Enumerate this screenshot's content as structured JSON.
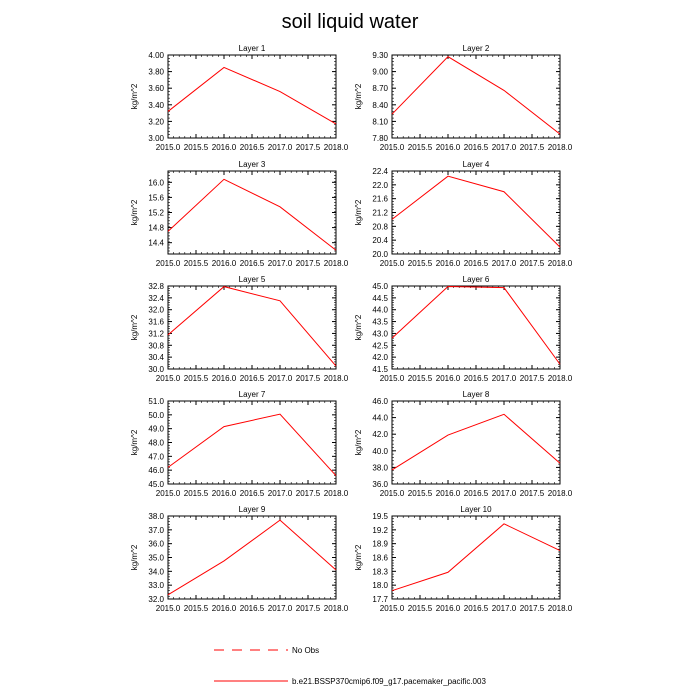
{
  "title": "soil liquid water",
  "colors": {
    "model": "#ff0000",
    "axis": "#000000"
  },
  "legend": {
    "obs_label": "No Obs",
    "model_label": "b.e21.BSSP370cmip6.f09_g17.pacemaker_pacific.003"
  },
  "chart_data": [
    {
      "type": "line",
      "title": "Layer 1",
      "ylabel": "kg/m^2",
      "x": [
        2015.0,
        2016.0,
        2017.0,
        2018.0
      ],
      "xticks": [
        "2015.0",
        "2015.5",
        "2016.0",
        "2016.5",
        "2017.0",
        "2017.5",
        "2018.0"
      ],
      "xlim": [
        2015.0,
        2018.0
      ],
      "ylim": [
        3.0,
        4.0
      ],
      "yticks": [
        "3.00",
        "3.20",
        "3.40",
        "3.60",
        "3.80",
        "4.00"
      ],
      "series": [
        {
          "values": [
            3.32,
            3.85,
            3.56,
            3.17
          ]
        }
      ]
    },
    {
      "type": "line",
      "title": "Layer 2",
      "ylabel": "kg/m^2",
      "x": [
        2015.0,
        2016.0,
        2017.0,
        2018.0
      ],
      "xticks": [
        "2015.0",
        "2015.5",
        "2016.0",
        "2016.5",
        "2017.0",
        "2017.5",
        "2018.0"
      ],
      "xlim": [
        2015.0,
        2018.0
      ],
      "ylim": [
        7.8,
        9.3
      ],
      "yticks": [
        "7.80",
        "8.10",
        "8.40",
        "8.70",
        "9.00",
        "9.30"
      ],
      "series": [
        {
          "values": [
            8.23,
            9.27,
            8.66,
            7.87
          ]
        }
      ]
    },
    {
      "type": "line",
      "title": "Layer 3",
      "ylabel": "kg/m^2",
      "x": [
        2015.0,
        2016.0,
        2017.0,
        2018.0
      ],
      "xticks": [
        "2015.0",
        "2015.5",
        "2016.0",
        "2016.5",
        "2017.0",
        "2017.5",
        "2018.0"
      ],
      "xlim": [
        2015.0,
        2018.0
      ],
      "ylim": [
        14.1,
        16.3
      ],
      "yticks": [
        "14.4",
        "14.8",
        "15.2",
        "15.6",
        "16.0"
      ],
      "series": [
        {
          "values": [
            14.7,
            16.08,
            15.35,
            14.2
          ]
        }
      ]
    },
    {
      "type": "line",
      "title": "Layer 4",
      "ylabel": "kg/m^2",
      "x": [
        2015.0,
        2016.0,
        2017.0,
        2018.0
      ],
      "xticks": [
        "2015.0",
        "2015.5",
        "2016.0",
        "2016.5",
        "2017.0",
        "2017.5",
        "2018.0"
      ],
      "xlim": [
        2015.0,
        2018.0
      ],
      "ylim": [
        20.0,
        22.4
      ],
      "yticks": [
        "20.0",
        "20.4",
        "20.8",
        "21.2",
        "21.6",
        "22.0",
        "22.4"
      ],
      "series": [
        {
          "values": [
            21.0,
            22.25,
            21.8,
            20.2
          ]
        }
      ]
    },
    {
      "type": "line",
      "title": "Layer 5",
      "ylabel": "kg/m^2",
      "x": [
        2015.0,
        2016.0,
        2017.0,
        2018.0
      ],
      "xticks": [
        "2015.0",
        "2015.5",
        "2016.0",
        "2016.5",
        "2017.0",
        "2017.5",
        "2018.0"
      ],
      "xlim": [
        2015.0,
        2018.0
      ],
      "ylim": [
        30.0,
        32.8
      ],
      "yticks": [
        "30.0",
        "30.4",
        "30.8",
        "31.2",
        "31.6",
        "32.0",
        "32.4",
        "32.8"
      ],
      "series": [
        {
          "values": [
            31.15,
            32.78,
            32.3,
            30.1
          ]
        }
      ]
    },
    {
      "type": "line",
      "title": "Layer 6",
      "ylabel": "kg/m^2",
      "x": [
        2015.0,
        2016.0,
        2017.0,
        2018.0
      ],
      "xticks": [
        "2015.0",
        "2015.5",
        "2016.0",
        "2016.5",
        "2017.0",
        "2017.5",
        "2018.0"
      ],
      "xlim": [
        2015.0,
        2018.0
      ],
      "ylim": [
        41.5,
        45.0
      ],
      "yticks": [
        "41.5",
        "42.0",
        "42.5",
        "43.0",
        "43.5",
        "44.0",
        "44.5",
        "45.0"
      ],
      "series": [
        {
          "values": [
            42.8,
            44.98,
            44.93,
            41.7
          ]
        }
      ]
    },
    {
      "type": "line",
      "title": "Layer 7",
      "ylabel": "kg/m^2",
      "x": [
        2015.0,
        2016.0,
        2017.0,
        2018.0
      ],
      "xticks": [
        "2015.0",
        "2015.5",
        "2016.0",
        "2016.5",
        "2017.0",
        "2017.5",
        "2018.0"
      ],
      "xlim": [
        2015.0,
        2018.0
      ],
      "ylim": [
        45.0,
        51.0
      ],
      "yticks": [
        "45.0",
        "46.0",
        "47.0",
        "48.0",
        "49.0",
        "50.0",
        "51.0"
      ],
      "series": [
        {
          "values": [
            46.2,
            49.15,
            50.05,
            45.6
          ]
        }
      ]
    },
    {
      "type": "line",
      "title": "Layer 8",
      "ylabel": "kg/m^2",
      "x": [
        2015.0,
        2016.0,
        2017.0,
        2018.0
      ],
      "xticks": [
        "2015.0",
        "2015.5",
        "2016.0",
        "2016.5",
        "2017.0",
        "2017.5",
        "2018.0"
      ],
      "xlim": [
        2015.0,
        2018.0
      ],
      "ylim": [
        36.0,
        46.0
      ],
      "yticks": [
        "36.0",
        "38.0",
        "40.0",
        "42.0",
        "44.0",
        "46.0"
      ],
      "series": [
        {
          "values": [
            37.7,
            41.9,
            44.4,
            38.5
          ]
        }
      ]
    },
    {
      "type": "line",
      "title": "Layer 9",
      "ylabel": "kg/m^2",
      "x": [
        2015.0,
        2016.0,
        2017.0,
        2018.0
      ],
      "xticks": [
        "2015.0",
        "2015.5",
        "2016.0",
        "2016.5",
        "2017.0",
        "2017.5",
        "2018.0"
      ],
      "xlim": [
        2015.0,
        2018.0
      ],
      "ylim": [
        32.0,
        38.0
      ],
      "yticks": [
        "32.0",
        "33.0",
        "34.0",
        "35.0",
        "36.0",
        "37.0",
        "38.0"
      ],
      "series": [
        {
          "values": [
            32.3,
            34.75,
            37.7,
            34.1
          ]
        }
      ]
    },
    {
      "type": "line",
      "title": "Layer 10",
      "ylabel": "kg/m^2",
      "x": [
        2015.0,
        2016.0,
        2017.0,
        2018.0
      ],
      "xticks": [
        "2015.0",
        "2015.5",
        "2016.0",
        "2016.5",
        "2017.0",
        "2017.5",
        "2018.0"
      ],
      "xlim": [
        2015.0,
        2018.0
      ],
      "ylim": [
        17.7,
        19.5
      ],
      "yticks": [
        "17.7",
        "18.0",
        "18.3",
        "18.6",
        "18.9",
        "19.2",
        "19.5"
      ],
      "series": [
        {
          "values": [
            17.88,
            18.28,
            19.33,
            18.75
          ]
        }
      ]
    }
  ]
}
